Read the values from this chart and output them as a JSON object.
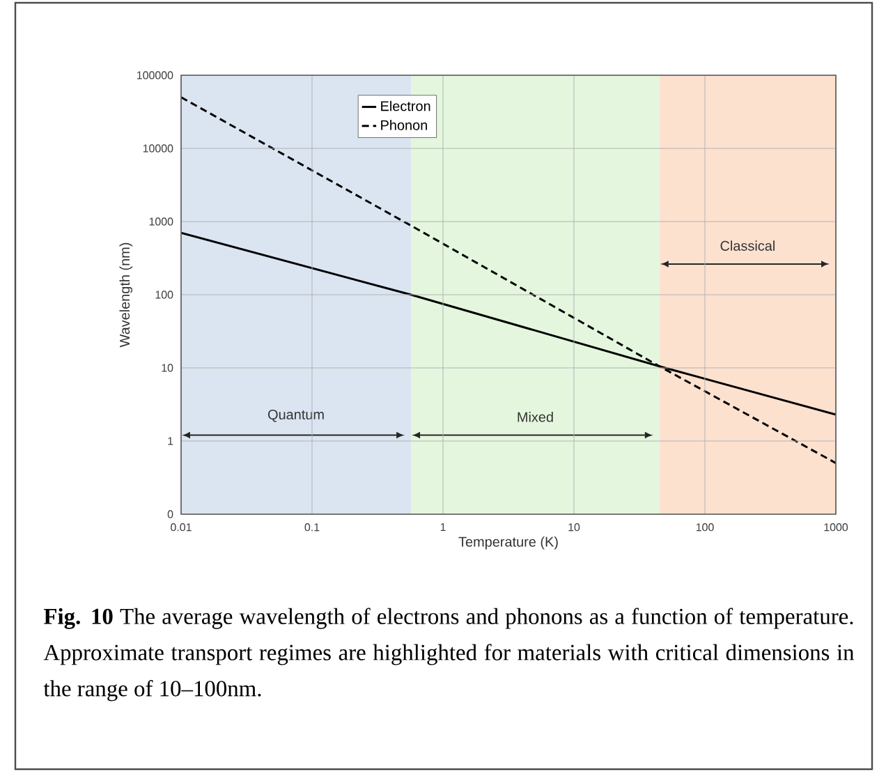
{
  "chart_data": {
    "type": "line",
    "xlabel": "Temperature (K)",
    "ylabel": "Wavelength (nm)",
    "log": "xy",
    "grid": true,
    "legend": "top left",
    "xlim": [
      0.01,
      1000
    ],
    "ylim": [
      0.1,
      100000
    ],
    "xticks": [
      0.01,
      0.1,
      1,
      10,
      100,
      1000
    ],
    "yticks": [
      {
        "value": 0.1,
        "label": "0"
      },
      1,
      10,
      100,
      1000,
      10000,
      100000
    ],
    "x": [
      0.01,
      0.57,
      45,
      1000
    ],
    "series": [
      {
        "name": "Electron",
        "color": "#000000",
        "line_style": "solid",
        "values": [
          700,
          100,
          10.5,
          2.3
        ]
      },
      {
        "name": "Phonon",
        "color": "#000000",
        "line_style": "dashed",
        "values": [
          50000,
          880,
          10.5,
          0.5
        ]
      }
    ],
    "bands": [
      {
        "axis": "x",
        "from": 0.01,
        "to": 0.57,
        "label": "Quantum",
        "color": "#dbe5f1"
      },
      {
        "axis": "x",
        "from": 0.57,
        "to": 45,
        "label": "Mixed",
        "color": "#e4f7de"
      },
      {
        "axis": "x",
        "from": 45,
        "to": 1000,
        "label": "Classical",
        "color": "#fde1cf"
      }
    ],
    "annotations": [
      "**Fig. 10** The average wavelength of electrons and phonons as a function of temperature.  Approximate transport regimes are highlighted for materials with critical dimensions in the range of 10–100nm."
    ]
  }
}
